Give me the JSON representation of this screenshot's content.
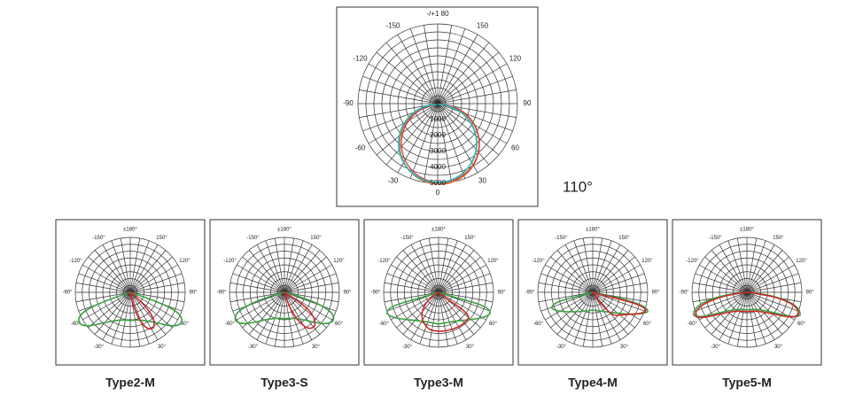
{
  "main": {
    "angle_labels": [
      "-/+1 80",
      "150",
      "120",
      "90",
      "60",
      "30",
      "0",
      "-30",
      "-60",
      "-90",
      "-120",
      "-150"
    ],
    "radial_labels": [
      "0",
      "1000",
      "2000",
      "3000",
      "4000",
      "5000"
    ],
    "beam_angle": "110°"
  },
  "panel_angle_labels": [
    "±180°",
    "150°",
    "120°",
    "90°",
    "60°",
    "30°",
    "",
    "-30°",
    "-60°",
    "-90°",
    "-120°",
    "-150°"
  ],
  "panels": [
    {
      "title": "Type2-M"
    },
    {
      "title": "Type3-S"
    },
    {
      "title": "Type3-M"
    },
    {
      "title": "Type4-M"
    },
    {
      "title": "Type5-M"
    }
  ]
}
